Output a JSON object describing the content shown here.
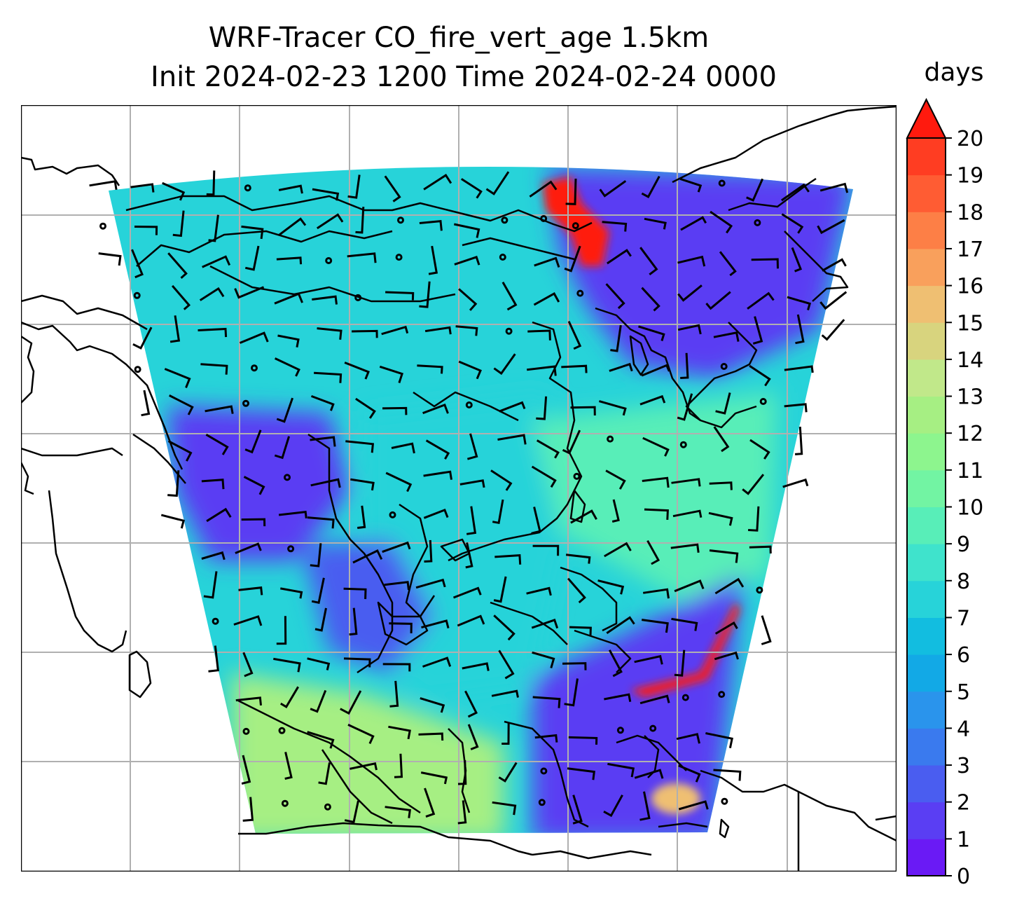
{
  "chart_data": {
    "type": "heatmap",
    "title_line1": "WRF-Tracer CO_fire_vert_age 1.5km",
    "title_line2": "Init 2024-02-23 1200 Time 2024-02-24 0000",
    "colorbar": {
      "label": "days",
      "min": 0,
      "max": 20,
      "step": 1,
      "extend": "max",
      "ticks": [
        "0",
        "1",
        "2",
        "3",
        "4",
        "5",
        "6",
        "7",
        "8",
        "9",
        "10",
        "11",
        "12",
        "13",
        "14",
        "15",
        "16",
        "17",
        "18",
        "19",
        "20"
      ],
      "colors": [
        "#6a1af5",
        "#5a3ef3",
        "#4a5df0",
        "#3a7aee",
        "#2a94ec",
        "#12a9e6",
        "#12bde0",
        "#27d3d9",
        "#3fe3cc",
        "#58eeb8",
        "#72f4a3",
        "#8df58e",
        "#a6ef83",
        "#c1e88a",
        "#d8d47e",
        "#efbf72",
        "#f9a05c",
        "#fd7f46",
        "#ff5c33",
        "#ff3d22",
        "#ff1a0e"
      ]
    },
    "field_regions": [
      {
        "name": "northwest",
        "value": 7
      },
      {
        "name": "northeast",
        "value": 1.5
      },
      {
        "name": "northeast-fire",
        "value": 20
      },
      {
        "name": "central",
        "value": 7.5
      },
      {
        "name": "west-bay",
        "value": 1.5
      },
      {
        "name": "east-pacific",
        "value": 9
      },
      {
        "name": "southwest",
        "value": 12
      },
      {
        "name": "south-east",
        "value": 1.5
      },
      {
        "name": "southeast-patch",
        "value": 15
      }
    ],
    "grid": true,
    "coastlines": true,
    "wind_barbs": true
  }
}
